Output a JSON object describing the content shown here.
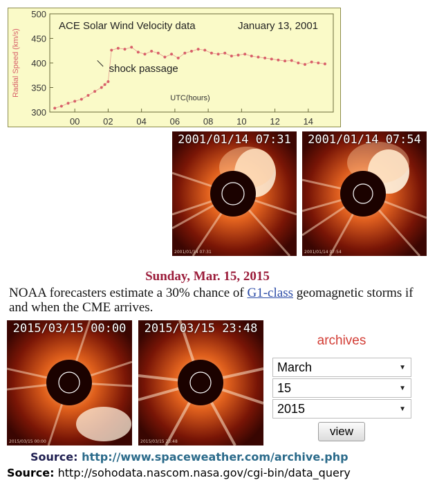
{
  "ace_chart": {
    "title": "ACE Solar Wind Velocity data",
    "date": "January 13, 2001",
    "ylabel": "Radial Speed (km/s)",
    "xlabel": "UTC(hours)",
    "annotation": "shock passage",
    "y_ticks": [
      "500",
      "450",
      "400",
      "350",
      "300"
    ],
    "x_ticks": [
      "00",
      "02",
      "04",
      "06",
      "08",
      "10",
      "12",
      "14"
    ],
    "colors": {
      "data": "#d8606a",
      "frame": "#8a8a4a",
      "background": "#fafac8"
    }
  },
  "chart_data": {
    "type": "scatter",
    "title": "ACE Solar Wind Velocity data",
    "subtitle": "January 13, 2001",
    "xlabel": "UTC(hours)",
    "ylabel": "Radial Speed (km/s)",
    "xlim": [
      -1.5,
      15.5
    ],
    "ylim": [
      300,
      500
    ],
    "grid": false,
    "x": [
      -1.2,
      -0.8,
      -0.4,
      0.0,
      0.4,
      0.8,
      1.2,
      1.6,
      1.8,
      2.0,
      2.2,
      2.6,
      3.0,
      3.4,
      3.8,
      4.2,
      4.6,
      5.0,
      5.4,
      5.8,
      6.2,
      6.6,
      7.0,
      7.4,
      7.8,
      8.2,
      8.6,
      9.0,
      9.4,
      9.8,
      10.2,
      10.6,
      11.0,
      11.4,
      11.8,
      12.2,
      12.6,
      13.0,
      13.4,
      13.8,
      14.2,
      14.6,
      15.0
    ],
    "y": [
      308,
      312,
      318,
      322,
      326,
      334,
      342,
      350,
      356,
      362,
      426,
      430,
      428,
      432,
      422,
      418,
      424,
      420,
      412,
      418,
      410,
      420,
      424,
      428,
      426,
      420,
      418,
      420,
      414,
      416,
      418,
      414,
      412,
      410,
      408,
      406,
      404,
      405,
      400,
      397,
      402,
      400,
      398
    ],
    "annotations": [
      {
        "text": "shock passage",
        "x": 2.0,
        "y": 392
      }
    ]
  },
  "coronagraph_top": [
    {
      "stamp": "2001/01/14 07:31",
      "small_stamp": "2001/01/14 07:31"
    },
    {
      "stamp": "2001/01/14 07:54",
      "small_stamp": "2001/01/14 07:54"
    }
  ],
  "news": {
    "date": "Sunday, Mar. 15, 2015",
    "text_before": "NOAA forecasters estimate a 30% chance of ",
    "link": "G1-class",
    "text_after": " geomagnetic storms if and when the CME arrives."
  },
  "coronagraph_bottom": [
    {
      "stamp": "2015/03/15 00:00",
      "small_stamp": "2015/03/15 00:00"
    },
    {
      "stamp": "2015/03/15 23:48",
      "small_stamp": "2015/03/15 23:48"
    }
  ],
  "archives": {
    "title": "archives",
    "month": "March",
    "day": "15",
    "year": "2015",
    "view_label": "view",
    "colors": {
      "title": "#d23c34"
    }
  },
  "sources": [
    {
      "label": "Source:",
      "url": "http://www.spaceweather.com/archive.php"
    },
    {
      "label": "Source:",
      "url": "http://sohodata.nascom.nasa.gov/cgi-bin/data_query"
    }
  ]
}
